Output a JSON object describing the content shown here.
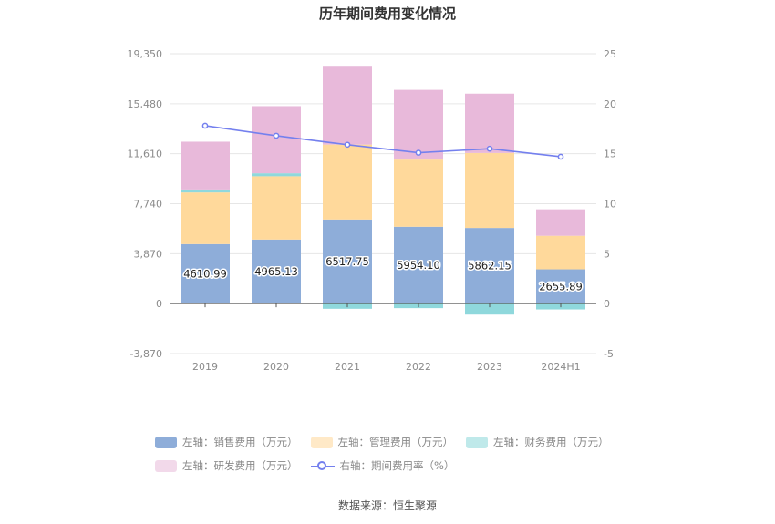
{
  "chart_data": {
    "type": "bar",
    "title": "历年期间费用变化情况",
    "categories": [
      "2019",
      "2020",
      "2021",
      "2022",
      "2023",
      "2024H1"
    ],
    "left_axis": {
      "ticks": [
        "19,350",
        "15,480",
        "11,610",
        "7,740",
        "3,870",
        "0",
        "-3,870"
      ],
      "ylim": [
        -3870,
        19350
      ]
    },
    "right_axis": {
      "ticks": [
        "25",
        "20",
        "15",
        "10",
        "5",
        "0",
        "-5"
      ],
      "ylim": [
        -5,
        25
      ]
    },
    "series": [
      {
        "name": "左轴：销售费用（万元）",
        "kind": "bar",
        "color": "#8eadd9",
        "values": [
          4610.99,
          4965.13,
          6517.75,
          5954.1,
          5862.15,
          2655.89
        ],
        "labels": [
          "4610.99",
          "4965.13",
          "6517.75",
          "5954.10",
          "5862.15",
          "2655.89"
        ]
      },
      {
        "name": "左轴：管理费用（万元）",
        "kind": "bar",
        "color": "#ffd99b",
        "legend_color": "#ffe9c7",
        "values": [
          4000,
          4900,
          5800,
          5200,
          5800,
          2600
        ]
      },
      {
        "name": "左轴：财务费用（万元）",
        "kind": "bar",
        "color": "#8fd8dc",
        "legend_color": "#bfe9ea",
        "values": [
          230,
          230,
          -400,
          -350,
          -850,
          -450
        ]
      },
      {
        "name": "左轴：研发费用（万元）",
        "kind": "bar",
        "color": "#e8b9da",
        "legend_color": "#f2d9ea",
        "values": [
          3700,
          5200,
          6100,
          5400,
          4600,
          2050
        ]
      },
      {
        "name": "右轴：期间费用率（%）",
        "kind": "line",
        "axis": "right",
        "color": "#7480ee",
        "values": [
          17.8,
          16.8,
          15.9,
          15.1,
          15.5,
          14.7
        ]
      }
    ],
    "grid": true,
    "legend_position": "bottom"
  },
  "source": "数据来源：恒生聚源"
}
